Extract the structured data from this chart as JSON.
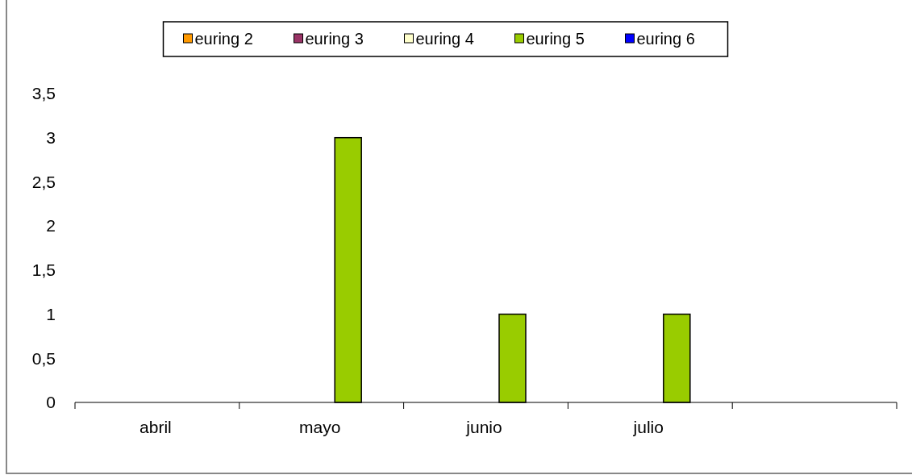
{
  "chart_data": {
    "type": "bar",
    "categories": [
      "abril",
      "mayo",
      "junio",
      "julio",
      null
    ],
    "series": [
      {
        "name": "euring 2",
        "color": "#ff9900",
        "values": [
          0,
          0,
          0,
          0,
          0
        ]
      },
      {
        "name": "euring 3",
        "color": "#993366",
        "values": [
          0,
          0,
          0,
          0,
          0
        ]
      },
      {
        "name": "euring 4",
        "color": "#ffffcc",
        "values": [
          0,
          0,
          0,
          0,
          0
        ]
      },
      {
        "name": "euring 5",
        "color": "#99cc00",
        "values": [
          0,
          3,
          1,
          1,
          0
        ]
      },
      {
        "name": "euring 6",
        "color": "#0000ff",
        "values": [
          0,
          0,
          0,
          0,
          0
        ]
      }
    ],
    "ylim": [
      0,
      3.5
    ],
    "yticks": [
      {
        "value": 0,
        "label": "0"
      },
      {
        "value": 0.5,
        "label": "0,5"
      },
      {
        "value": 1,
        "label": "1"
      },
      {
        "value": 1.5,
        "label": "1,5"
      },
      {
        "value": 2,
        "label": "2"
      },
      {
        "value": 2.5,
        "label": "2,5"
      },
      {
        "value": 3,
        "label": "3"
      },
      {
        "value": 3.5,
        "label": "3,5"
      }
    ],
    "grid": false,
    "legend": "top"
  }
}
